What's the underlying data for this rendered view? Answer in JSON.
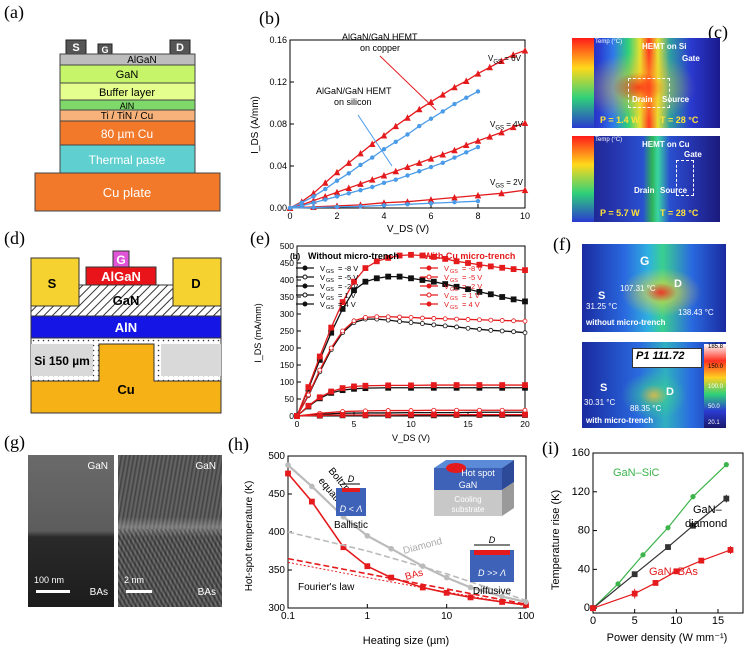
{
  "panels": {
    "a": {
      "label": "(a)",
      "layers": [
        "AlGaN",
        "GaN",
        "Buffer layer",
        "AlN",
        "Ti / TiN / Cu",
        "80 µm Cu",
        "Thermal paste",
        "Cu plate"
      ],
      "contacts": [
        "S",
        "G",
        "D"
      ]
    },
    "b": {
      "label": "(b)",
      "annotations": {
        "copper_line1": "AlGaN/GaN HEMT",
        "copper_line2": "on copper",
        "silicon_line1": "AlGaN/GaN HEMT",
        "silicon_line2": "on silicon",
        "vgs6": "V",
        "vgs6_sub": "GS",
        "vgs6_val": " = 6V",
        "vgs4": "V",
        "vgs4_sub": "GS",
        "vgs4_val": " = 4V",
        "vgs2": "V",
        "vgs2_sub": "GS",
        "vgs2_val": " = 2V"
      }
    },
    "c": {
      "label": "(c)",
      "top": {
        "title": "HEMT on Si",
        "gate": "Gate",
        "drain": "Drain",
        "source": "Source",
        "power": "P = 1.4 W",
        "temp": "T = 28 °C",
        "scale": "Temp (°C)"
      },
      "bottom": {
        "title": "HEMT on Cu",
        "gate": "Gate",
        "drain": "Drain",
        "source": "Source",
        "power": "P = 5.7 W",
        "temp": "T = 28 °C",
        "scale": "Temp (°C)"
      }
    },
    "d": {
      "label": "(d)",
      "regions": {
        "g": "G",
        "algan": "AlGaN",
        "s": "S",
        "d": "D",
        "gan": "GaN",
        "aln": "AlN",
        "si": "Si 150 µm",
        "cu": "Cu"
      }
    },
    "e": {
      "label": "(e)",
      "subtag": "(b)",
      "legend_left_title": "Without micro-trench",
      "legend_right_title": "With Cu micro-trench",
      "legend_entries": [
        "V",
        "V",
        "V",
        "V",
        "V"
      ],
      "legend_values": [
        "= -8 V",
        "= -5 V",
        "= -2 V",
        "= 1 V",
        "= 4 V"
      ]
    },
    "f": {
      "label": "(f)",
      "top": {
        "g": "G",
        "s": "S",
        "d": "D",
        "t1": "107.31 °C",
        "t2": "31.25 °C",
        "t3": "138.43 °C",
        "note": "without micro-trench"
      },
      "bottom": {
        "s": "S",
        "d": "D",
        "p1": "P1 111.72",
        "t1": "30.31 °C",
        "t2": "88.35 °C",
        "note": "with micro-trench",
        "scale_top": "185.8",
        "scale_labels": [
          "150.0",
          "100.0",
          "50.0",
          "20.1"
        ]
      }
    },
    "g": {
      "label": "(g)",
      "left": {
        "top": "GaN",
        "bottom": "BAs",
        "scale": "100 nm"
      },
      "right": {
        "top": "GaN",
        "bottom": "BAs",
        "scale": "2 nm"
      }
    },
    "h": {
      "label": "(h)",
      "ylabel": "Hot-spot temperature (K)",
      "xlabel": "Heating size (µm)",
      "boltzmann": [
        "Boltzmann",
        "equation"
      ],
      "fourier": "Fourier's law",
      "diamond": "Diamond",
      "bas": "BAs",
      "ballistic": "Ballistic",
      "diffusive": "Diffusive",
      "hotspot": "Hot spot",
      "gan": "GaN",
      "cooling": [
        "Cooling",
        "substrate"
      ],
      "D": "D",
      "d_less": "D < Λ",
      "d_more": "D >> Λ"
    },
    "i": {
      "label": "(i)",
      "ylabel": "Temperature rise (K)",
      "xlabel": "Power density (W mm⁻¹)",
      "sic": "GaN–SiC",
      "diamond": [
        "GaN–",
        "diamond"
      ],
      "bas": "GaN–BAs"
    }
  },
  "chart_data": [
    {
      "id": "b",
      "type": "line",
      "xlabel": "V_DS (V)",
      "ylabel": "I_DS (A/mm)",
      "xlim": [
        0,
        10
      ],
      "ylim": [
        0,
        0.16
      ],
      "xticks": [
        "0",
        "2",
        "4",
        "6",
        "8",
        "10"
      ],
      "yticks": [
        "0.00",
        "0.04",
        "0.08",
        "0.12",
        "0.16"
      ],
      "series": [
        {
          "name": "Cu VGS=6V",
          "color": "#e41a1c",
          "x": [
            0,
            0.5,
            1,
            1.5,
            2,
            2.5,
            3,
            3.5,
            4,
            4.5,
            5,
            5.5,
            6,
            6.5,
            7,
            7.5,
            8,
            8.5,
            9,
            9.5,
            10
          ],
          "y": [
            0,
            0.006,
            0.014,
            0.024,
            0.034,
            0.043,
            0.052,
            0.061,
            0.069,
            0.078,
            0.086,
            0.094,
            0.101,
            0.108,
            0.115,
            0.121,
            0.128,
            0.134,
            0.14,
            0.146,
            0.15
          ]
        },
        {
          "name": "Cu VGS=4V",
          "color": "#e41a1c",
          "x": [
            0,
            0.5,
            1,
            1.5,
            2,
            2.5,
            3,
            3.5,
            4,
            4.5,
            5,
            5.5,
            6,
            6.5,
            7,
            7.5,
            8,
            8.5,
            9,
            9.5,
            10
          ],
          "y": [
            0,
            0.003,
            0.007,
            0.011,
            0.015,
            0.019,
            0.023,
            0.027,
            0.031,
            0.035,
            0.039,
            0.043,
            0.047,
            0.051,
            0.055,
            0.06,
            0.064,
            0.068,
            0.072,
            0.077,
            0.081
          ]
        },
        {
          "name": "Cu VGS=2V",
          "color": "#e41a1c",
          "x": [
            0,
            1,
            2,
            3,
            4,
            5,
            6,
            7,
            8,
            9,
            10
          ],
          "y": [
            0,
            0.001,
            0.002,
            0.003,
            0.005,
            0.006,
            0.008,
            0.01,
            0.012,
            0.014,
            0.017
          ]
        },
        {
          "name": "Si VGS=6V",
          "color": "#4a9be8",
          "x": [
            0,
            0.5,
            1,
            1.5,
            2,
            2.5,
            3,
            3.5,
            4,
            4.5,
            5,
            5.5,
            6,
            6.5,
            7,
            7.5,
            8
          ],
          "y": [
            0,
            0.005,
            0.011,
            0.018,
            0.026,
            0.033,
            0.041,
            0.048,
            0.056,
            0.063,
            0.07,
            0.078,
            0.085,
            0.092,
            0.099,
            0.105,
            0.111
          ]
        },
        {
          "name": "Si VGS=4V",
          "color": "#4a9be8",
          "x": [
            0,
            0.5,
            1,
            1.5,
            2,
            2.5,
            3,
            3.5,
            4,
            4.5,
            5,
            5.5,
            6,
            6.5,
            7,
            7.5,
            8
          ],
          "y": [
            0,
            0.002,
            0.005,
            0.008,
            0.011,
            0.014,
            0.017,
            0.02,
            0.024,
            0.027,
            0.031,
            0.035,
            0.039,
            0.043,
            0.048,
            0.053,
            0.058
          ]
        },
        {
          "name": "Si VGS=2V",
          "color": "#4a9be8",
          "x": [
            0,
            1,
            2,
            3,
            4,
            5,
            6,
            7,
            8
          ],
          "y": [
            0,
            0.0005,
            0.001,
            0.0015,
            0.0025,
            0.0035,
            0.0045,
            0.0055,
            0.0065
          ]
        }
      ]
    },
    {
      "id": "e",
      "type": "line",
      "xlabel": "V_DS (V)",
      "ylabel": "I_DS (mA/mm)",
      "xlim": [
        0,
        20
      ],
      "ylim": [
        0,
        500
      ],
      "xticks": [
        "0",
        "5",
        "10",
        "15",
        "20"
      ],
      "yticks": [
        "0",
        "50",
        "100",
        "150",
        "200",
        "250",
        "300",
        "350",
        "400",
        "450",
        "500"
      ],
      "series": [
        {
          "name": "w/o VGS=4V",
          "color": "#111111",
          "x": [
            0,
            1,
            2,
            3,
            4,
            5,
            6,
            7,
            8,
            9,
            10,
            11,
            12,
            13,
            14,
            15,
            16,
            17,
            18,
            19,
            20
          ],
          "y": [
            0,
            80,
            165,
            245,
            315,
            370,
            395,
            405,
            410,
            410,
            405,
            400,
            395,
            388,
            380,
            373,
            365,
            358,
            350,
            343,
            337
          ]
        },
        {
          "name": "w/o VGS=1V",
          "color": "#111111",
          "x": [
            0,
            1,
            2,
            3,
            4,
            5,
            6,
            7,
            8,
            9,
            10,
            11,
            12,
            13,
            14,
            15,
            16,
            17,
            18,
            19,
            20
          ],
          "y": [
            0,
            60,
            130,
            195,
            245,
            275,
            285,
            285,
            282,
            278,
            275,
            272,
            268,
            265,
            262,
            258,
            255,
            252,
            250,
            248,
            245
          ]
        },
        {
          "name": "w/o VGS=-2V",
          "color": "#111111",
          "x": [
            0,
            1,
            2,
            3,
            4,
            5,
            6,
            8,
            10,
            12,
            14,
            16,
            18,
            20
          ],
          "y": [
            0,
            28,
            52,
            68,
            76,
            80,
            82,
            83,
            83,
            83,
            83,
            83,
            83,
            83
          ]
        },
        {
          "name": "w/o VGS=-5V",
          "color": "#111111",
          "x": [
            0,
            2,
            4,
            6,
            8,
            10,
            12,
            14,
            16,
            18,
            20
          ],
          "y": [
            0,
            5,
            8,
            9,
            9,
            10,
            10,
            10,
            11,
            11,
            11
          ]
        },
        {
          "name": "w/o VGS=-8V",
          "color": "#111111",
          "x": [
            0,
            2,
            4,
            6,
            8,
            10,
            12,
            14,
            16,
            18,
            20
          ],
          "y": [
            0,
            1,
            2,
            2,
            2,
            2,
            2,
            3,
            3,
            3,
            3
          ]
        },
        {
          "name": "Cu VGS=4V",
          "color": "#e41a1c",
          "x": [
            0,
            1,
            2,
            3,
            4,
            5,
            6,
            7,
            8,
            9,
            10,
            11,
            12,
            13,
            14,
            15,
            16,
            17,
            18,
            19,
            20
          ],
          "y": [
            0,
            85,
            175,
            260,
            335,
            395,
            435,
            455,
            465,
            472,
            474,
            472,
            468,
            462,
            455,
            450,
            445,
            440,
            436,
            432,
            429
          ]
        },
        {
          "name": "Cu VGS=1V",
          "color": "#e41a1c",
          "x": [
            0,
            1,
            2,
            3,
            4,
            5,
            6,
            7,
            8,
            9,
            10,
            11,
            12,
            13,
            14,
            15,
            16,
            17,
            18,
            19,
            20
          ],
          "y": [
            0,
            62,
            135,
            200,
            250,
            280,
            290,
            292,
            292,
            291,
            290,
            288,
            287,
            286,
            285,
            284,
            283,
            282,
            281,
            280,
            279
          ]
        },
        {
          "name": "Cu VGS=-2V",
          "color": "#e41a1c",
          "x": [
            0,
            1,
            2,
            3,
            4,
            5,
            6,
            8,
            10,
            12,
            14,
            16,
            18,
            20
          ],
          "y": [
            0,
            30,
            55,
            72,
            82,
            87,
            89,
            90,
            90,
            91,
            91,
            91,
            91,
            91
          ]
        },
        {
          "name": "Cu VGS=-5V",
          "color": "#e41a1c",
          "x": [
            0,
            2,
            4,
            6,
            8,
            10,
            12,
            14,
            16,
            18,
            20
          ],
          "y": [
            0,
            8,
            13,
            15,
            16,
            16,
            17,
            17,
            17,
            17,
            17
          ]
        },
        {
          "name": "Cu VGS=-8V",
          "color": "#e41a1c",
          "x": [
            0,
            2,
            4,
            6,
            8,
            10,
            12,
            14,
            16,
            18,
            20
          ],
          "y": [
            0,
            2,
            3,
            3,
            3,
            4,
            4,
            4,
            4,
            4,
            4
          ]
        }
      ]
    },
    {
      "id": "h",
      "type": "line",
      "xscale": "log",
      "xlabel": "Heating size (µm)",
      "ylabel": "Hot-spot temperature (K)",
      "xlim": [
        0.1,
        100
      ],
      "ylim": [
        300,
        500
      ],
      "xticks": [
        "0.1",
        "1",
        "10",
        "100"
      ],
      "yticks": [
        "300",
        "350",
        "400",
        "450",
        "500"
      ],
      "series": [
        {
          "name": "BAs Boltzmann",
          "color": "#e41a1c",
          "x": [
            0.1,
            0.2,
            0.5,
            1,
            2,
            5,
            10,
            20,
            50,
            100
          ],
          "y": [
            477,
            440,
            380,
            355,
            340,
            327,
            320,
            314,
            308,
            304
          ]
        },
        {
          "name": "Diamond Boltzmann",
          "color": "#bbbbbb",
          "x": [
            0.1,
            0.2,
            0.5,
            1,
            2,
            5,
            10,
            20,
            50,
            100
          ],
          "y": [
            488,
            460,
            420,
            395,
            378,
            355,
            340,
            327,
            315,
            308
          ]
        },
        {
          "name": "BAs Fourier",
          "color": "#e41a1c",
          "x": [
            0.1,
            1,
            10,
            100
          ],
          "y": [
            365,
            345,
            325,
            305
          ]
        },
        {
          "name": "Diamond Fourier",
          "color": "#bbbbbb",
          "x": [
            0.1,
            1,
            10,
            100
          ],
          "y": [
            400,
            375,
            345,
            310
          ]
        }
      ]
    },
    {
      "id": "i",
      "type": "scatter",
      "xlabel": "Power density (W mm⁻¹)",
      "ylabel": "Temperature rise (K)",
      "xlim": [
        0,
        18
      ],
      "ylim": [
        -5,
        160
      ],
      "xticks": [
        "0",
        "5",
        "10",
        "15"
      ],
      "yticks": [
        "0",
        "40",
        "80",
        "120",
        "160"
      ],
      "series": [
        {
          "name": "GaN–SiC",
          "color": "#3cb44b",
          "x": [
            0,
            3,
            6,
            9,
            12,
            16
          ],
          "y": [
            0,
            25,
            55,
            83,
            115,
            148
          ]
        },
        {
          "name": "GaN–diamond",
          "color": "#333333",
          "x": [
            0,
            5,
            9,
            12,
            16
          ],
          "y": [
            0,
            35,
            63,
            85,
            113
          ]
        },
        {
          "name": "GaN–BAs",
          "color": "#e41a1c",
          "x": [
            0,
            5,
            7.5,
            10,
            13,
            16.5
          ],
          "y": [
            0,
            15,
            26,
            38,
            49,
            60
          ]
        }
      ]
    }
  ]
}
